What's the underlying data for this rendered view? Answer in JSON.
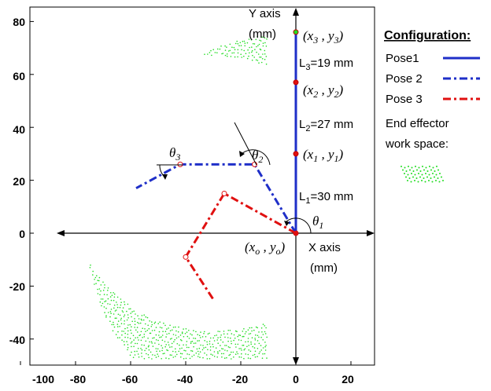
{
  "chart_data": {
    "type": "scatter",
    "title": "",
    "xlim": [
      -100,
      25
    ],
    "ylim": [
      -50,
      80
    ],
    "x_ticks": [
      -100,
      -80,
      -60,
      -40,
      -20,
      0,
      20
    ],
    "y_ticks": [
      80,
      60,
      40,
      20,
      0,
      -20,
      -40
    ],
    "x_tick_labels": [
      "-100",
      "-80",
      "-60",
      "-40",
      "-20",
      "0",
      "20"
    ],
    "y_tick_labels": [
      "80",
      "60",
      "40",
      "20",
      "0",
      "-20",
      "-40"
    ],
    "grid": false,
    "xlabel_line1": "X axis",
    "xlabel_line2": "(mm)",
    "ylabel_line1": "Y axis",
    "ylabel_line2": "(mm)",
    "legend": {
      "title": "Configuration:",
      "placement": "right",
      "entries": [
        {
          "label": "Pose1",
          "color": "#1f2fc8",
          "style": "solid"
        },
        {
          "label": "Pose 2",
          "color": "#1f2fc8",
          "style": "dashdot"
        },
        {
          "label": "Pose 3",
          "color": "#e01010",
          "style": "dashdot"
        },
        {
          "label_line1": "End effector",
          "label_line2": "work space:",
          "color": "#22dd22",
          "style": "dots"
        }
      ]
    },
    "series": [
      {
        "name": "Pose1",
        "color": "#1f2fc8",
        "style": "solid",
        "x": [
          0,
          0,
          0,
          0
        ],
        "y": [
          0,
          30,
          57,
          76
        ]
      },
      {
        "name": "Pose 2",
        "color": "#1f2fc8",
        "style": "dashdot",
        "x": [
          0,
          -15,
          -42,
          -58
        ],
        "y": [
          0,
          26,
          26,
          17
        ]
      },
      {
        "name": "Pose 3",
        "color": "#e01010",
        "style": "dashdot",
        "x": [
          0,
          -26,
          -40,
          -30
        ],
        "y": [
          0,
          15,
          -9,
          -25
        ]
      }
    ],
    "workspace": {
      "name": "End effector work space",
      "color": "#22dd22",
      "outer_radius": 76,
      "inner_radius": 52,
      "inner_center": [
        -30,
        15
      ],
      "x_range": [
        -76,
        -10
      ],
      "y_range": [
        -47,
        76
      ]
    },
    "annotations": [
      {
        "id": "p3",
        "text_var": "x",
        "sub": "3",
        "text_var2": "y",
        "sub2": "3"
      },
      {
        "id": "p2",
        "text_var": "x",
        "sub": "2",
        "text_var2": "y",
        "sub2": "2"
      },
      {
        "id": "p1",
        "text_var": "x",
        "sub": "1",
        "text_var2": "y",
        "sub2": "1"
      },
      {
        "id": "po",
        "text_var": "x",
        "sub": "o",
        "text_var2": "y",
        "sub2": "o"
      },
      {
        "id": "L3",
        "text": "L",
        "sub": "3",
        "rest": "=19 mm"
      },
      {
        "id": "L2",
        "text": "L",
        "sub": "2",
        "rest": "=27 mm"
      },
      {
        "id": "L1",
        "text": "L",
        "sub": "1",
        "rest": "=30 mm"
      },
      {
        "id": "t1",
        "text": "θ",
        "sub": "1"
      },
      {
        "id": "t2",
        "text": "θ",
        "sub": "2"
      },
      {
        "id": "t3",
        "text": "θ",
        "sub": "3"
      }
    ]
  }
}
